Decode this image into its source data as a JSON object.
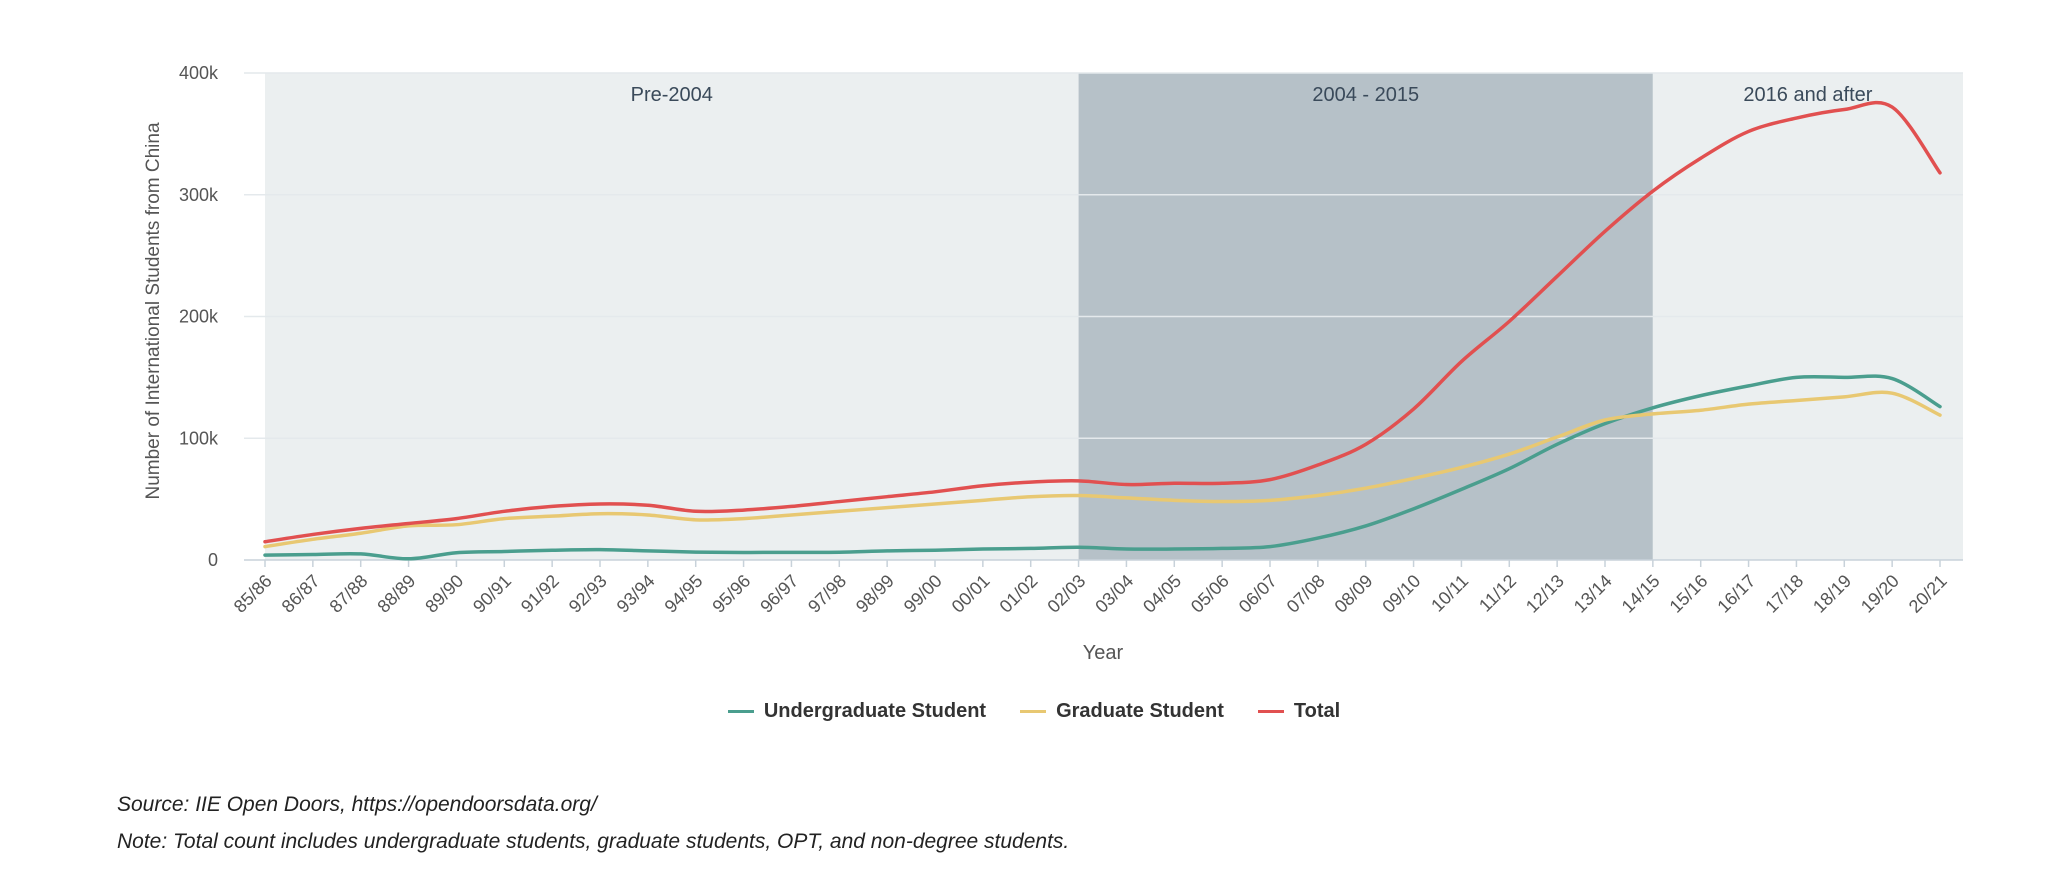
{
  "chart_data": {
    "type": "line",
    "title": "",
    "xlabel": "Year",
    "ylabel": "Number of International Students from China",
    "ylim": [
      0,
      400000
    ],
    "yticks": [
      0,
      100000,
      200000,
      300000,
      400000
    ],
    "ytick_labels": [
      "0",
      "100k",
      "200k",
      "300k",
      "400k"
    ],
    "grid": true,
    "categories": [
      "85/86",
      "86/87",
      "87/88",
      "88/89",
      "89/90",
      "90/91",
      "91/92",
      "92/93",
      "93/94",
      "94/95",
      "95/96",
      "96/97",
      "97/98",
      "98/99",
      "99/00",
      "00/01",
      "01/02",
      "02/03",
      "03/04",
      "04/05",
      "05/06",
      "06/07",
      "07/08",
      "08/09",
      "09/10",
      "10/11",
      "11/12",
      "12/13",
      "13/14",
      "14/15",
      "15/16",
      "16/17",
      "17/18",
      "18/19",
      "19/20",
      "20/21"
    ],
    "series": [
      {
        "name": "Undergraduate Student",
        "color": "#4a9e8e",
        "values": [
          4000,
          4500,
          5000,
          1000,
          6000,
          7000,
          8000,
          8500,
          7500,
          6500,
          6200,
          6300,
          6400,
          7500,
          8000,
          9000,
          9500,
          10500,
          9000,
          9000,
          9500,
          11000,
          18000,
          28000,
          42000,
          58000,
          75000,
          95000,
          112000,
          125000,
          135000,
          143000,
          150000,
          150000,
          149000,
          126000
        ]
      },
      {
        "name": "Graduate Student",
        "color": "#e8c872",
        "values": [
          11000,
          17000,
          22000,
          28000,
          29000,
          34000,
          36000,
          38000,
          37000,
          33000,
          34000,
          37000,
          40000,
          43000,
          46000,
          49000,
          52000,
          53000,
          51000,
          49000,
          48000,
          49000,
          53000,
          59000,
          67000,
          76000,
          87000,
          101000,
          115000,
          120000,
          123000,
          128000,
          131000,
          134000,
          137000,
          119000
        ]
      },
      {
        "name": "Total",
        "color": "#e15050",
        "values": [
          15000,
          21000,
          26000,
          30000,
          34000,
          40000,
          44000,
          46000,
          45000,
          40000,
          41000,
          44000,
          48000,
          52000,
          56000,
          61000,
          64000,
          65000,
          62000,
          63000,
          63000,
          66000,
          78000,
          95000,
          124000,
          163000,
          196000,
          233000,
          270000,
          303000,
          330000,
          352000,
          363000,
          370000,
          372000,
          318000
        ]
      }
    ],
    "bands": [
      {
        "label": "Pre-2004",
        "from": "85/86",
        "to": "02/03",
        "color": "#ebeff0"
      },
      {
        "label": "2004 - 2015",
        "from": "02/03",
        "to": "14/15",
        "color": "#b6c1c8"
      },
      {
        "label": "2016 and after",
        "from": "14/15",
        "to": "20/21",
        "color": "#ebeff0"
      }
    ],
    "legend_position": "bottom-center"
  },
  "footer": {
    "source": "Source: IIE Open Doors, https://opendoorsdata.org/",
    "note": "Note: Total count includes undergraduate students, graduate students, OPT, and non-degree students."
  }
}
